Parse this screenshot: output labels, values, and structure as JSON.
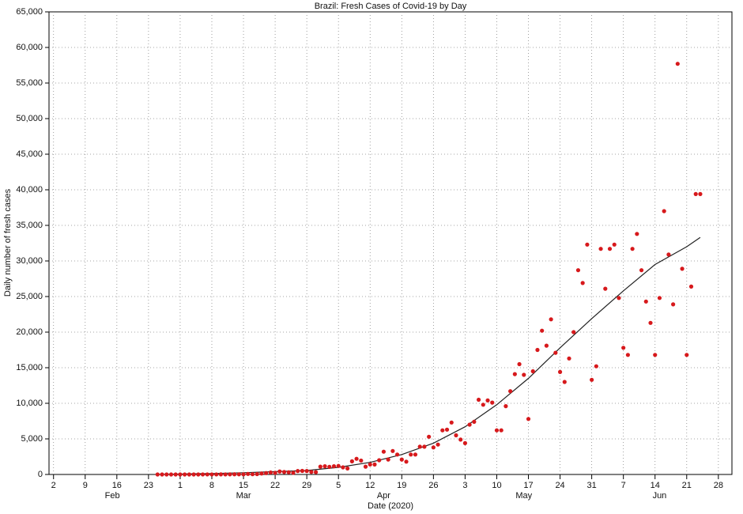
{
  "chart_data": {
    "type": "scatter",
    "title": "Brazil: Fresh Cases of Covid-19 by Day",
    "x_label": "Date (2020)",
    "y_label": "Daily number of fresh cases",
    "xlim": [
      "2020-02-01",
      "2020-07-01"
    ],
    "ylim": [
      0,
      65000
    ],
    "grid": true,
    "xticks": [
      {
        "value": "2020-02-02",
        "label": "2"
      },
      {
        "value": "2020-02-09",
        "label": "9"
      },
      {
        "value": "2020-02-16",
        "label": "16"
      },
      {
        "value": "2020-02-23",
        "label": "23"
      },
      {
        "value": "2020-03-01",
        "label": "1"
      },
      {
        "value": "2020-03-08",
        "label": "8"
      },
      {
        "value": "2020-03-15",
        "label": "15"
      },
      {
        "value": "2020-03-22",
        "label": "22"
      },
      {
        "value": "2020-03-29",
        "label": "29"
      },
      {
        "value": "2020-04-05",
        "label": "5"
      },
      {
        "value": "2020-04-12",
        "label": "12"
      },
      {
        "value": "2020-04-19",
        "label": "19"
      },
      {
        "value": "2020-04-26",
        "label": "26"
      },
      {
        "value": "2020-05-03",
        "label": "3"
      },
      {
        "value": "2020-05-10",
        "label": "10"
      },
      {
        "value": "2020-05-17",
        "label": "17"
      },
      {
        "value": "2020-05-24",
        "label": "24"
      },
      {
        "value": "2020-05-31",
        "label": "31"
      },
      {
        "value": "2020-06-07",
        "label": "7"
      },
      {
        "value": "2020-06-14",
        "label": "14"
      },
      {
        "value": "2020-06-21",
        "label": "21"
      },
      {
        "value": "2020-06-28",
        "label": "28"
      }
    ],
    "month_labels": [
      {
        "value": "2020-02-15",
        "label": "Feb"
      },
      {
        "value": "2020-03-15",
        "label": "Mar"
      },
      {
        "value": "2020-04-15",
        "label": "Apr"
      },
      {
        "value": "2020-05-16",
        "label": "May"
      },
      {
        "value": "2020-06-15",
        "label": "Jun"
      }
    ],
    "yticks": [
      0,
      {
        "value": 5000,
        "label": "5,000"
      },
      {
        "value": 10000,
        "label": "10,000"
      },
      {
        "value": 15000,
        "label": "15,000"
      },
      {
        "value": 20000,
        "label": "20,000"
      },
      {
        "value": 25000,
        "label": "25,000"
      },
      {
        "value": 30000,
        "label": "30,000"
      },
      {
        "value": 35000,
        "label": "35,000"
      },
      {
        "value": 40000,
        "label": "40,000"
      },
      {
        "value": 45000,
        "label": "45,000"
      },
      {
        "value": 50000,
        "label": "50,000"
      },
      {
        "value": 55000,
        "label": "55,000"
      },
      {
        "value": 60000,
        "label": "60,000"
      },
      {
        "value": 65000,
        "label": "65,000"
      }
    ],
    "series": [
      {
        "color": "#d7191c",
        "x": [
          "2020-02-25",
          "2020-02-26",
          "2020-02-27",
          "2020-02-28",
          "2020-02-29",
          "2020-03-01",
          "2020-03-02",
          "2020-03-03",
          "2020-03-04",
          "2020-03-05",
          "2020-03-06",
          "2020-03-07",
          "2020-03-08",
          "2020-03-09",
          "2020-03-10",
          "2020-03-11",
          "2020-03-12",
          "2020-03-13",
          "2020-03-14",
          "2020-03-15",
          "2020-03-16",
          "2020-03-17",
          "2020-03-18",
          "2020-03-19",
          "2020-03-20",
          "2020-03-21",
          "2020-03-22",
          "2020-03-23",
          "2020-03-24",
          "2020-03-25",
          "2020-03-26",
          "2020-03-27",
          "2020-03-28",
          "2020-03-29",
          "2020-03-30",
          "2020-03-31",
          "2020-04-01",
          "2020-04-02",
          "2020-04-03",
          "2020-04-04",
          "2020-04-05",
          "2020-04-06",
          "2020-04-07",
          "2020-04-08",
          "2020-04-09",
          "2020-04-10",
          "2020-04-11",
          "2020-04-12",
          "2020-04-13",
          "2020-04-14",
          "2020-04-15",
          "2020-04-16",
          "2020-04-17",
          "2020-04-18",
          "2020-04-19",
          "2020-04-20",
          "2020-04-21",
          "2020-04-22",
          "2020-04-23",
          "2020-04-24",
          "2020-04-25",
          "2020-04-26",
          "2020-04-27",
          "2020-04-28",
          "2020-04-29",
          "2020-04-30",
          "2020-05-01",
          "2020-05-02",
          "2020-05-03",
          "2020-05-04",
          "2020-05-05",
          "2020-05-06",
          "2020-05-07",
          "2020-05-08",
          "2020-05-09",
          "2020-05-10",
          "2020-05-11",
          "2020-05-12",
          "2020-05-13",
          "2020-05-14",
          "2020-05-15",
          "2020-05-16",
          "2020-05-17",
          "2020-05-18",
          "2020-05-19",
          "2020-05-20",
          "2020-05-21",
          "2020-05-22",
          "2020-05-23",
          "2020-05-24",
          "2020-05-25",
          "2020-05-26",
          "2020-05-27",
          "2020-05-28",
          "2020-05-29",
          "2020-05-30",
          "2020-05-31",
          "2020-06-01",
          "2020-06-02",
          "2020-06-03",
          "2020-06-04",
          "2020-06-05",
          "2020-06-06",
          "2020-06-07",
          "2020-06-08",
          "2020-06-09",
          "2020-06-10",
          "2020-06-11",
          "2020-06-12",
          "2020-06-13",
          "2020-06-14",
          "2020-06-15",
          "2020-06-16",
          "2020-06-17",
          "2020-06-18",
          "2020-06-19",
          "2020-06-20",
          "2020-06-21",
          "2020-06-22",
          "2020-06-23",
          "2020-06-24"
        ],
        "values": [
          1,
          0,
          0,
          0,
          1,
          0,
          0,
          0,
          0,
          1,
          4,
          6,
          6,
          6,
          12,
          9,
          18,
          25,
          21,
          23,
          79,
          34,
          57,
          137,
          193,
          283,
          224,
          418,
          345,
          310,
          232,
          482,
          502,
          487,
          352,
          323,
          1100,
          1150,
          1070,
          1150,
          1200,
          1000,
          850,
          1850,
          2200,
          1950,
          1100,
          1400,
          1400,
          2000,
          3200,
          2100,
          3300,
          2800,
          2100,
          1800,
          2800,
          2800,
          3900,
          3900,
          5300,
          3800,
          4200,
          6200,
          6300,
          7300,
          5500,
          4900,
          4400,
          7000,
          7400,
          10500,
          9800,
          10400,
          10100,
          6200,
          6200,
          9600,
          11700,
          14100,
          15500,
          14000,
          7800,
          14500,
          17500,
          20200,
          18100,
          21800,
          17100,
          14400,
          13000,
          16300,
          20000,
          28700,
          26900,
          32300,
          13300,
          15200,
          31700,
          26100,
          31700,
          32300,
          24800,
          17800,
          16800,
          31700,
          33800,
          28700,
          24300,
          21300,
          16800,
          24800,
          37000,
          30900,
          23900,
          57700,
          28900,
          16800,
          26400,
          39400,
          39400
        ]
      }
    ],
    "trend": {
      "color": "#222222",
      "x": [
        "2020-02-25",
        "2020-03-01",
        "2020-03-08",
        "2020-03-15",
        "2020-03-22",
        "2020-03-29",
        "2020-04-05",
        "2020-04-12",
        "2020-04-19",
        "2020-04-26",
        "2020-05-03",
        "2020-05-10",
        "2020-05-17",
        "2020-05-24",
        "2020-05-31",
        "2020-06-07",
        "2020-06-14",
        "2020-06-21",
        "2020-06-24"
      ],
      "values": [
        0,
        50,
        130,
        250,
        400,
        550,
        1000,
        1700,
        2800,
        4400,
        6700,
        9800,
        13500,
        17800,
        21900,
        25800,
        29500,
        32000,
        33300
      ]
    }
  }
}
